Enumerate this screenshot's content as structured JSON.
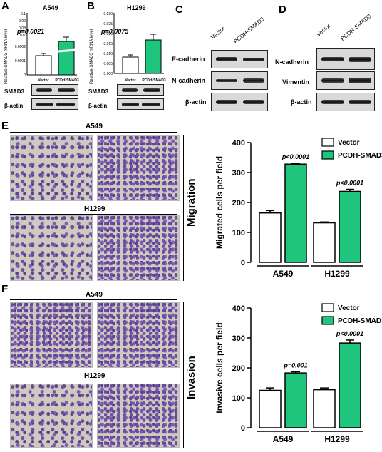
{
  "panels": {
    "A": {
      "letter": "A",
      "cell": "A549",
      "p": "p=0.0021"
    },
    "B": {
      "letter": "B",
      "cell": "H1299",
      "p": "p=0.0075"
    },
    "C": {
      "letter": "C"
    },
    "D": {
      "letter": "D"
    },
    "E": {
      "letter": "E"
    },
    "F": {
      "letter": "F"
    }
  },
  "ab_common": {
    "ylabel": "Relative SMAD3 mRNA level",
    "x_vector": "Vector",
    "x_pcdh": "PCDH-SMAD3",
    "blot_smad3": "SMAD3",
    "blot_actin": "β-actin"
  },
  "panelA_ticks": {
    "top": [
      "0.1",
      "0.09",
      "0.08",
      "0.07"
    ],
    "bottom": [
      "0.0002",
      "0.0001",
      "0"
    ]
  },
  "panelB_ticks": [
    "0.030",
    "0.025",
    "0.020",
    "0.015",
    "0.010",
    "0.005",
    "0.000"
  ],
  "panelC": {
    "col1": "Vector",
    "col2": "PCDH-SMAD3",
    "rows": [
      "E-cadherin",
      "N-cadherin",
      "β-actin"
    ]
  },
  "panelD": {
    "col1": "Vector",
    "col2": "PCDH-SMAD3",
    "rows": [
      "N-cadherin",
      "Vimentin",
      "β-actin"
    ]
  },
  "panelE": {
    "side": "Migration",
    "top_cell": "A549",
    "bottom_cell": "H1299"
  },
  "panelF": {
    "side": "Invasion",
    "top_cell": "A549",
    "bottom_cell": "H1299"
  },
  "legend": {
    "vector": "Vector",
    "pcdh": "PCDH-SMAD3"
  },
  "colors": {
    "pcdh": "#1fc47d",
    "vector": "#ffffff"
  },
  "chart_data": [
    {
      "type": "bar",
      "ylabel": "Migrated cells per field",
      "categories": [
        "A549",
        "H1299"
      ],
      "series": [
        {
          "name": "Vector",
          "values": [
            165,
            132
          ],
          "errors": [
            8,
            3
          ]
        },
        {
          "name": "PCDH-SMAD3",
          "values": [
            328,
            237
          ],
          "errors": [
            3,
            7
          ]
        }
      ],
      "annotations": [
        "p<0.0001",
        "p<0.0001"
      ],
      "ylim": [
        0,
        400
      ],
      "yticks": [
        "0",
        "100",
        "200",
        "300",
        "400"
      ],
      "legend_position": "top-right"
    },
    {
      "type": "bar",
      "ylabel": "Invasive cells per field",
      "categories": [
        "A549",
        "H1299"
      ],
      "series": [
        {
          "name": "Vector",
          "values": [
            125,
            127
          ],
          "errors": [
            8,
            6
          ]
        },
        {
          "name": "PCDH-SMAD3",
          "values": [
            183,
            283
          ],
          "errors": [
            4,
            10
          ]
        }
      ],
      "annotations": [
        "p=0.001",
        "p<0.0001"
      ],
      "ylim": [
        0,
        400
      ],
      "yticks": [
        "0",
        "100",
        "200",
        "300",
        "400"
      ],
      "legend_position": "top-right"
    }
  ]
}
